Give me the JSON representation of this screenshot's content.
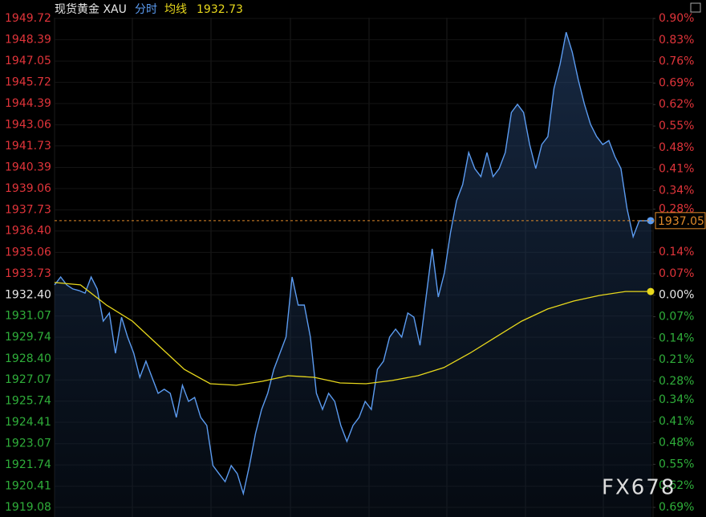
{
  "chart_data": {
    "type": "line",
    "header": {
      "instrument": "现货黄金 XAU",
      "mode": "分时",
      "avg_label": "均线",
      "avg_value": "1932.73"
    },
    "watermark": "FX678",
    "ylim": [
      1919.08,
      1949.72
    ],
    "yticks": [
      1949.72,
      1948.39,
      1947.05,
      1945.72,
      1944.39,
      1943.06,
      1941.73,
      1940.39,
      1939.06,
      1937.73,
      {
        "value": 1936.4,
        "label": "1936.40"
      },
      1935.06,
      1933.73,
      {
        "value": 1932.4,
        "label": "1932.40"
      },
      1931.07,
      1929.74,
      {
        "value": 1928.4,
        "label": "1928.40"
      },
      1927.07,
      1925.74,
      1924.41,
      1923.07,
      1921.74,
      1920.41,
      1919.08
    ],
    "y2lim": [
      -0.69,
      0.9
    ],
    "y2ticks": [
      {
        "value": 0.9,
        "label": "0.90%"
      },
      {
        "value": 0.83,
        "label": "0.83%"
      },
      {
        "value": 0.76,
        "label": "0.76%"
      },
      {
        "value": 0.69,
        "label": "0.69%"
      },
      {
        "value": 0.62,
        "label": "0.62%"
      },
      {
        "value": 0.55,
        "label": "0.55%"
      },
      {
        "value": 0.48,
        "label": "0.48%"
      },
      {
        "value": 0.41,
        "label": "0.41%"
      },
      {
        "value": 0.34,
        "label": "0.34%"
      },
      {
        "value": 0.28,
        "label": "0.28%"
      },
      {
        "value": 0.14,
        "label": "0.14%"
      },
      {
        "value": 0.07,
        "label": "0.07%"
      },
      {
        "value": 0,
        "label": "0.00%"
      },
      {
        "value": -0.07,
        "label": "0.07%"
      },
      {
        "value": -0.14,
        "label": "0.14%"
      },
      {
        "value": -0.21,
        "label": "0.21%"
      },
      {
        "value": -0.28,
        "label": "0.28%"
      },
      {
        "value": -0.34,
        "label": "0.34%"
      },
      {
        "value": -0.41,
        "label": "0.41%"
      },
      {
        "value": -0.48,
        "label": "0.48%"
      },
      {
        "value": -0.55,
        "label": "0.55%"
      },
      {
        "value": -0.62,
        "label": "0.62%"
      },
      {
        "value": -0.69,
        "label": "0.69%"
      }
    ],
    "series": [
      {
        "name": "分时",
        "color": "#5b9bf0",
        "values": [
          1933.02,
          1933.52,
          1933.02,
          1932.77,
          1932.67,
          1932.51,
          1933.52,
          1932.77,
          1930.75,
          1931.26,
          1928.74,
          1931.0,
          1929.75,
          1928.74,
          1927.23,
          1928.24,
          1927.23,
          1926.23,
          1926.48,
          1926.23,
          1924.72,
          1926.73,
          1925.72,
          1925.97,
          1924.72,
          1924.21,
          1921.7,
          1921.19,
          1920.69,
          1921.7,
          1921.19,
          1919.94,
          1921.7,
          1923.71,
          1925.22,
          1926.23,
          1927.73,
          1928.74,
          1929.75,
          1933.52,
          1931.76,
          1931.76,
          1929.75,
          1926.23,
          1925.22,
          1926.23,
          1925.72,
          1924.21,
          1923.21,
          1924.21,
          1924.72,
          1925.72,
          1925.22,
          1927.73,
          1928.24,
          1929.75,
          1930.25,
          1929.75,
          1931.26,
          1931.0,
          1929.24,
          1932.26,
          1935.28,
          1932.26,
          1933.77,
          1936.29,
          1938.3,
          1939.31,
          1941.32,
          1940.31,
          1939.81,
          1941.32,
          1939.81,
          1940.31,
          1941.32,
          1943.83,
          1944.34,
          1943.83,
          1941.82,
          1940.31,
          1941.82,
          1942.32,
          1945.34,
          1946.85,
          1948.86,
          1947.61,
          1945.85,
          1944.34,
          1943.08,
          1942.32,
          1941.82,
          1942.07,
          1941.07,
          1940.31,
          1937.8,
          1936.04,
          1937.04,
          1937.04,
          1937.05
        ]
      },
      {
        "name": "均线",
        "color": "#e8d81c",
        "values": [
          1933.17,
          1933.02,
          1931.76,
          1930.75,
          1929.24,
          1927.73,
          1926.83,
          1926.73,
          1926.98,
          1927.33,
          1927.23,
          1926.88,
          1926.83,
          1927.03,
          1927.33,
          1927.84,
          1928.74,
          1929.75,
          1930.75,
          1931.51,
          1932.01,
          1932.36,
          1932.61,
          1932.61
        ]
      }
    ]
  }
}
